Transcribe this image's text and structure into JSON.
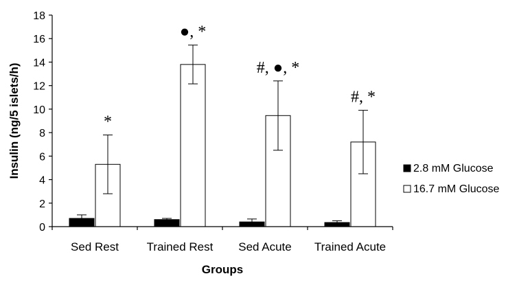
{
  "chart_data": {
    "type": "bar",
    "categories": [
      "Sed Rest",
      "Trained Rest",
      "Sed Acute",
      "Trained Acute"
    ],
    "series": [
      {
        "name": "2.8 mM Glucose",
        "fill": "#000000",
        "values": [
          0.7,
          0.6,
          0.4,
          0.35
        ],
        "errors": [
          0.3,
          0.1,
          0.25,
          0.15
        ]
      },
      {
        "name": "16.7 mM Glucose",
        "fill": "#ffffff",
        "values": [
          5.3,
          13.8,
          9.45,
          7.2
        ],
        "errors": [
          2.5,
          1.65,
          2.95,
          2.7
        ]
      }
    ],
    "annotations": [
      "*",
      "●, *",
      "#, ●, *",
      "#, *"
    ],
    "xlabel": "Groups",
    "ylabel": "Insulin (ng/5 islets/h)",
    "ylim": [
      0,
      18
    ],
    "yticks": [
      0,
      2,
      4,
      6,
      8,
      10,
      12,
      14,
      16,
      18
    ],
    "grid": false,
    "legend_position": "right"
  }
}
